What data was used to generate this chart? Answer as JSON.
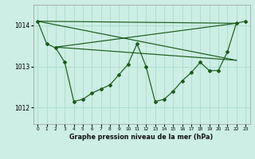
{
  "title": "Graphe pression niveau de la mer (hPa)",
  "background_color": "#cceee4",
  "grid_color": "#aaddcc",
  "line_color": "#1a5c1a",
  "xlim": [
    -0.5,
    23.5
  ],
  "ylim": [
    1011.6,
    1014.5
  ],
  "yticks": [
    1012,
    1013,
    1014
  ],
  "xticks": [
    0,
    1,
    2,
    3,
    4,
    5,
    6,
    7,
    8,
    9,
    10,
    11,
    12,
    13,
    14,
    15,
    16,
    17,
    18,
    19,
    20,
    21,
    22,
    23
  ],
  "zigzag": {
    "x": [
      0,
      1,
      2,
      3,
      4,
      5,
      6,
      7,
      8,
      9,
      10,
      11,
      12,
      13,
      14,
      15,
      16,
      17,
      18,
      19,
      20,
      21,
      22,
      23
    ],
    "y": [
      1014.1,
      1013.55,
      1013.45,
      1013.1,
      1012.15,
      1012.2,
      1012.35,
      1012.45,
      1012.55,
      1012.8,
      1013.05,
      1013.55,
      1013.0,
      1012.15,
      1012.2,
      1012.4,
      1012.65,
      1012.85,
      1013.1,
      1012.9,
      1012.9,
      1013.35,
      1014.05,
      1014.1
    ]
  },
  "envelope_lines": [
    {
      "x": [
        0,
        22
      ],
      "y": [
        1014.1,
        1014.05
      ]
    },
    {
      "x": [
        0,
        22
      ],
      "y": [
        1014.1,
        1013.15
      ]
    },
    {
      "x": [
        2,
        22
      ],
      "y": [
        1013.47,
        1013.15
      ]
    },
    {
      "x": [
        2,
        22
      ],
      "y": [
        1013.47,
        1014.05
      ]
    }
  ]
}
